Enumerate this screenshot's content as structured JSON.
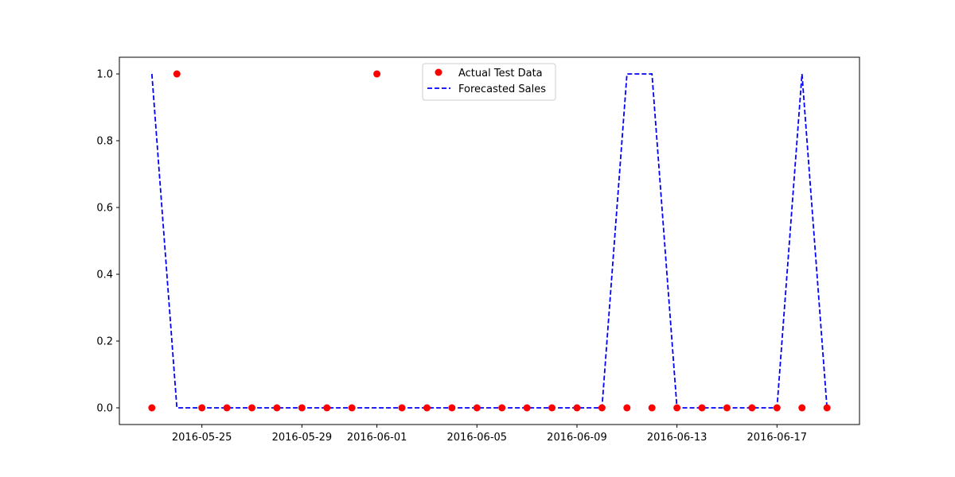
{
  "chart_data": {
    "type": "line",
    "title": "",
    "xlabel": "",
    "ylabel": "",
    "x_axis_type": "date",
    "xlim": [
      "2016-05-21T16:48:00",
      "2016-06-20T07:12:00"
    ],
    "ylim": [
      -0.05,
      1.05
    ],
    "grid": false,
    "legend_position": "top-center",
    "x_ticks": [
      "2016-05-25",
      "2016-05-29",
      "2016-06-01",
      "2016-06-05",
      "2016-06-09",
      "2016-06-13",
      "2016-06-17"
    ],
    "y_ticks": [
      "0.0",
      "0.2",
      "0.4",
      "0.6",
      "0.8",
      "1.0"
    ],
    "x": [
      "2016-05-23",
      "2016-05-24",
      "2016-05-25",
      "2016-05-26",
      "2016-05-27",
      "2016-05-28",
      "2016-05-29",
      "2016-05-30",
      "2016-05-31",
      "2016-06-01",
      "2016-06-02",
      "2016-06-03",
      "2016-06-04",
      "2016-06-05",
      "2016-06-06",
      "2016-06-07",
      "2016-06-08",
      "2016-06-09",
      "2016-06-10",
      "2016-06-11",
      "2016-06-12",
      "2016-06-13",
      "2016-06-14",
      "2016-06-15",
      "2016-06-16",
      "2016-06-17",
      "2016-06-18",
      "2016-06-19"
    ],
    "series": [
      {
        "name": "Actual Test Data",
        "style": "scatter",
        "color": "#ff0000",
        "values": [
          0,
          1,
          0,
          0,
          0,
          0,
          0,
          0,
          0,
          1,
          0,
          0,
          0,
          0,
          0,
          0,
          0,
          0,
          0,
          0,
          0,
          0,
          0,
          0,
          0,
          0,
          0,
          0
        ]
      },
      {
        "name": "Forecasted Sales",
        "style": "dashed-line",
        "color": "#0000ff",
        "values": [
          1,
          0,
          0,
          0,
          0,
          0,
          0,
          0,
          0,
          0,
          0,
          0,
          0,
          0,
          0,
          0,
          0,
          0,
          0,
          1,
          1,
          0,
          0,
          0,
          0,
          0,
          1,
          0
        ]
      }
    ]
  }
}
